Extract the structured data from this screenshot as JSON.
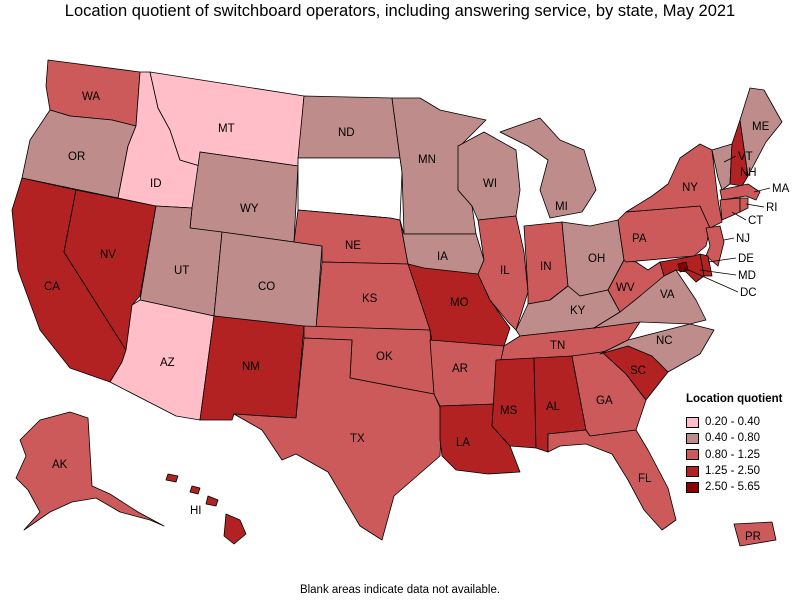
{
  "title": "Location quotient of switchboard operators, including answering service, by state, May 2021",
  "footnote": "Blank areas indicate data not available.",
  "legend": {
    "title": "Location quotient",
    "items": [
      {
        "label": "0.20 - 0.40",
        "color": "#ffbec8"
      },
      {
        "label": "0.40 - 0.80",
        "color": "#bf8c8c"
      },
      {
        "label": "0.80 - 1.25",
        "color": "#cd5a5a"
      },
      {
        "label": "1.25 - 2.50",
        "color": "#b22222"
      },
      {
        "label": "2.50 - 5.65",
        "color": "#8b0000"
      }
    ]
  },
  "states": {
    "WA": {
      "label": "WA",
      "class": "0.80 - 1.25"
    },
    "OR": {
      "label": "OR",
      "class": "0.40 - 0.80"
    },
    "CA": {
      "label": "CA",
      "class": "1.25 - 2.50"
    },
    "NV": {
      "label": "NV",
      "class": "1.25 - 2.50"
    },
    "ID": {
      "label": "ID",
      "class": "0.20 - 0.40"
    },
    "MT": {
      "label": "MT",
      "class": "0.20 - 0.40"
    },
    "WY": {
      "label": "WY",
      "class": "0.40 - 0.80"
    },
    "UT": {
      "label": "UT",
      "class": "0.40 - 0.80"
    },
    "AZ": {
      "label": "AZ",
      "class": "0.20 - 0.40"
    },
    "CO": {
      "label": "CO",
      "class": "0.40 - 0.80"
    },
    "NM": {
      "label": "NM",
      "class": "1.25 - 2.50"
    },
    "ND": {
      "label": "ND",
      "class": "0.40 - 0.80"
    },
    "SD": {
      "label": "",
      "class": "none"
    },
    "NE": {
      "label": "NE",
      "class": "0.80 - 1.25"
    },
    "KS": {
      "label": "KS",
      "class": "0.80 - 1.25"
    },
    "OK": {
      "label": "OK",
      "class": "0.80 - 1.25"
    },
    "TX": {
      "label": "TX",
      "class": "0.80 - 1.25"
    },
    "MN": {
      "label": "MN",
      "class": "0.40 - 0.80"
    },
    "IA": {
      "label": "IA",
      "class": "0.40 - 0.80"
    },
    "MO": {
      "label": "MO",
      "class": "1.25 - 2.50"
    },
    "AR": {
      "label": "AR",
      "class": "0.80 - 1.25"
    },
    "LA": {
      "label": "LA",
      "class": "1.25 - 2.50"
    },
    "WI": {
      "label": "WI",
      "class": "0.40 - 0.80"
    },
    "IL": {
      "label": "IL",
      "class": "0.80 - 1.25"
    },
    "MI": {
      "label": "MI",
      "class": "0.40 - 0.80"
    },
    "IN": {
      "label": "IN",
      "class": "0.80 - 1.25"
    },
    "OH": {
      "label": "OH",
      "class": "0.40 - 0.80"
    },
    "KY": {
      "label": "KY",
      "class": "0.40 - 0.80"
    },
    "TN": {
      "label": "TN",
      "class": "0.80 - 1.25"
    },
    "MS": {
      "label": "MS",
      "class": "1.25 - 2.50"
    },
    "AL": {
      "label": "AL",
      "class": "1.25 - 2.50"
    },
    "GA": {
      "label": "GA",
      "class": "0.80 - 1.25"
    },
    "FL": {
      "label": "FL",
      "class": "0.80 - 1.25"
    },
    "SC": {
      "label": "SC",
      "class": "1.25 - 2.50"
    },
    "NC": {
      "label": "NC",
      "class": "0.40 - 0.80"
    },
    "VA": {
      "label": "VA",
      "class": "0.40 - 0.80"
    },
    "WV": {
      "label": "WV",
      "class": "0.80 - 1.25"
    },
    "PA": {
      "label": "PA",
      "class": "0.80 - 1.25"
    },
    "NY": {
      "label": "NY",
      "class": "0.80 - 1.25"
    },
    "NJ": {
      "label": "NJ",
      "class": "0.80 - 1.25"
    },
    "DE": {
      "label": "DE",
      "class": "1.25 - 2.50"
    },
    "MD": {
      "label": "MD",
      "class": "1.25 - 2.50"
    },
    "DC": {
      "label": "DC",
      "class": "2.50 - 5.65"
    },
    "CT": {
      "label": "CT",
      "class": "0.80 - 1.25"
    },
    "RI": {
      "label": "RI",
      "class": "0.80 - 1.25"
    },
    "MA": {
      "label": "MA",
      "class": "0.80 - 1.25"
    },
    "VT": {
      "label": "VT",
      "class": "0.40 - 0.80"
    },
    "NH": {
      "label": "NH",
      "class": "1.25 - 2.50"
    },
    "ME": {
      "label": "ME",
      "class": "0.40 - 0.80"
    },
    "AK": {
      "label": "AK",
      "class": "0.80 - 1.25"
    },
    "HI": {
      "label": "HI",
      "class": "1.25 - 2.50"
    },
    "PR": {
      "label": "PR",
      "class": "0.80 - 1.25"
    }
  }
}
